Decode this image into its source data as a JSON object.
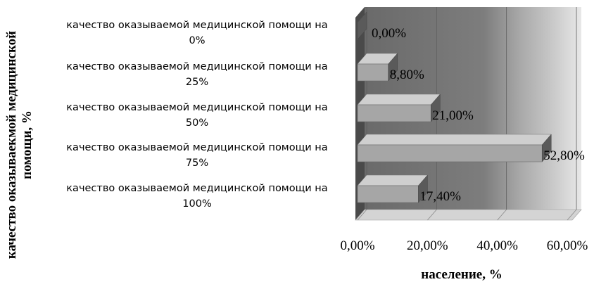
{
  "chart_data": {
    "type": "bar",
    "orientation": "horizontal",
    "categories": [
      [
        "качество оказываемой медицинской помощи на",
        "0%"
      ],
      [
        "качество оказываемой медицинской помощи на",
        "25%"
      ],
      [
        "качество оказываемой медицинской помощи на",
        "50%"
      ],
      [
        "качество оказываемой медицинской помощи на",
        "75%"
      ],
      [
        "качество оказываемой медицинской помощи на",
        "100%"
      ]
    ],
    "values": [
      0.0,
      8.8,
      21.0,
      52.8,
      17.4
    ],
    "data_labels": [
      "0,00%",
      "8,80%",
      "21,00%",
      "52,80%",
      "17,40%"
    ],
    "xlabel": "население, %",
    "ylabel": [
      "качество оказываекмой медицинской",
      "помощи, %"
    ],
    "xticks": [
      "0,00%",
      "20,00%",
      "40,00%",
      "60,00%"
    ],
    "xlim": [
      0,
      60
    ],
    "grid": true,
    "legend": "none",
    "style": "3d",
    "colors": {
      "bar_front": "#a6a6a6",
      "bar_top": "#cfcfcf",
      "bar_side": "#5a5a5a",
      "wall_dark": "#6e6e6e",
      "wall_light": "#e3e3e3",
      "floor": "#d0d0d0"
    }
  }
}
